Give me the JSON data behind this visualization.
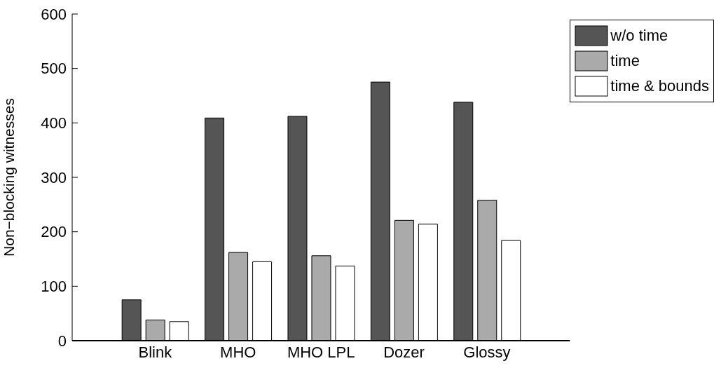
{
  "chart_data": {
    "type": "bar",
    "ylabel": "Non−blocking witnesses",
    "categories": [
      "Blink",
      "MHO",
      "MHO LPL",
      "Dozer",
      "Glossy"
    ],
    "series": [
      {
        "name": "w/o time",
        "color": "#555555",
        "values": [
          75,
          409,
          412,
          475,
          438
        ]
      },
      {
        "name": "time",
        "color": "#aaaaaa",
        "values": [
          38,
          162,
          156,
          221,
          258
        ]
      },
      {
        "name": "time & bounds",
        "color": "#ffffff",
        "values": [
          35,
          145,
          137,
          214,
          184
        ]
      }
    ],
    "ylim": [
      0,
      600
    ],
    "yticks": [
      0,
      100,
      200,
      300,
      400,
      500,
      600
    ],
    "grid": false,
    "legend": "top right"
  }
}
